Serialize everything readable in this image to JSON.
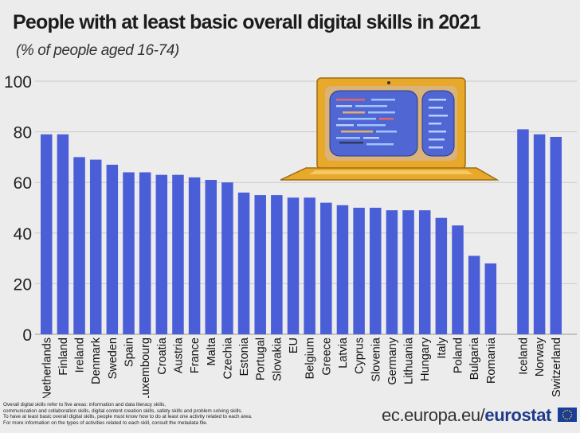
{
  "header": {
    "title": "People with at least basic overall digital skills  in 2021",
    "subtitle": "(% of people aged 16-74)"
  },
  "colors": {
    "bar": "#4a5ed8",
    "background": "#ececec",
    "grid": "#c9c9c9",
    "laptop_body": "#e8a82a",
    "laptop_screen": "#4f66d3"
  },
  "chart_data": {
    "type": "bar",
    "title": "People with at least basic overall digital skills  in 2021",
    "subtitle": "(% of people aged 16-74)",
    "xlabel": "",
    "ylabel": "",
    "ylim": [
      0,
      100
    ],
    "yticks": [
      0,
      20,
      40,
      60,
      80,
      100
    ],
    "grid": true,
    "categories": [
      "Netherlands",
      "Finland",
      "Ireland",
      "Denmark",
      "Sweden",
      "Spain",
      "Luxembourg",
      "Croatia",
      "Austria",
      "France",
      "Malta",
      "Czechia",
      "Estonia",
      "Portugal",
      "Slovakia",
      "EU",
      "Belgium",
      "Greece",
      "Latvia",
      "Cyprus",
      "Slovenia",
      "Germany",
      "Lithuania",
      "Hungary",
      "Italy",
      "Poland",
      "Bulgaria",
      "Romania",
      "Iceland",
      "Norway",
      "Switzerland"
    ],
    "values": [
      79,
      79,
      70,
      69,
      67,
      64,
      64,
      63,
      63,
      62,
      61,
      60,
      56,
      55,
      55,
      54,
      54,
      52,
      51,
      50,
      50,
      49,
      49,
      49,
      46,
      43,
      31,
      28,
      81,
      79,
      78
    ],
    "groups": [
      {
        "from": 0,
        "to": 27
      },
      {
        "from": 28,
        "to": 30
      }
    ]
  },
  "footnote": [
    "Overall digital skills refer to five areas: information and data literacy skills,",
    "communication and collaboration skills, digital content creation skills, safety skills and problem solving skills.",
    "To have at least basic overall digital skills, people must know how to do at least one activity related to each area.",
    "For more information on the types of activities related to each skill, consult the metadata file."
  ],
  "source": {
    "prefix": "ec.europa.eu/",
    "brand": "eurostat"
  },
  "icons": [
    "laptop-illustration",
    "eu-flag-icon"
  ]
}
